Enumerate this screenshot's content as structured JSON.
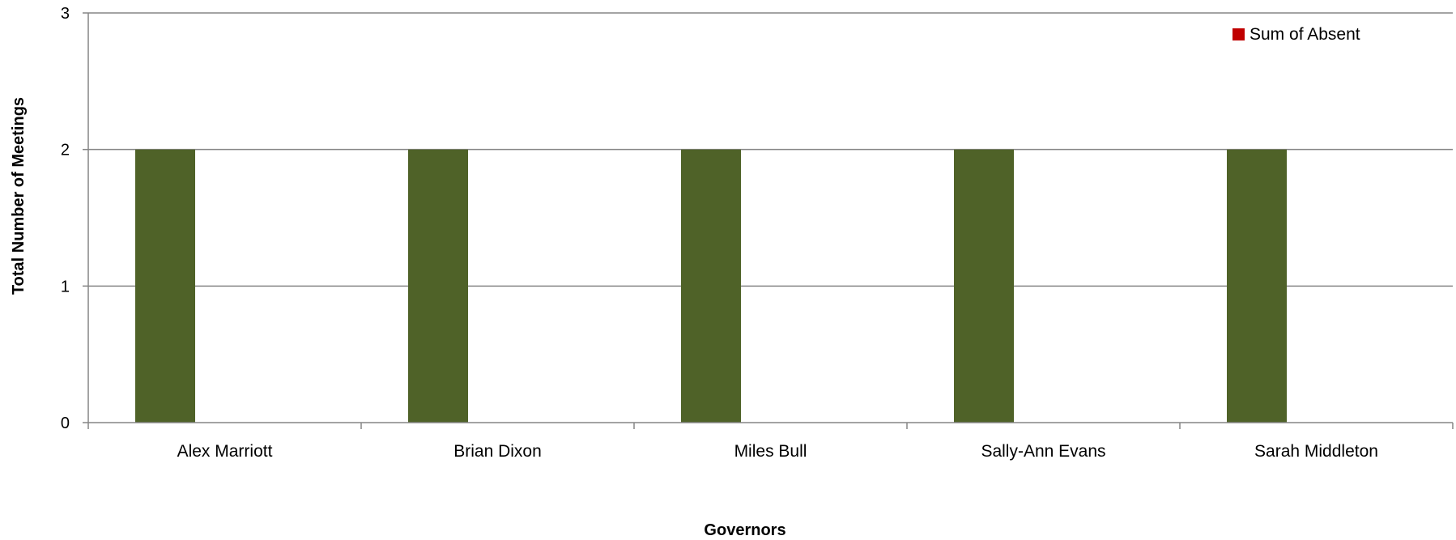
{
  "chart_data": {
    "type": "bar",
    "title": "",
    "xlabel": "Governors",
    "ylabel": "Total Number of Meetings",
    "categories": [
      "Alex Marriott",
      "Brian Dixon",
      "Miles Bull",
      "Sally-Ann Evans",
      "Sarah Middleton"
    ],
    "series": [
      {
        "values": [
          2,
          2,
          2,
          2,
          2
        ],
        "color": "#4F6228"
      },
      {
        "name": "Sum of Absent",
        "values": [
          0,
          0,
          0,
          0,
          0
        ],
        "color": "#C00000"
      }
    ],
    "ylim": [
      0,
      3
    ],
    "yticks": [
      "0",
      "1",
      "2",
      "3"
    ],
    "grid": true,
    "legend_position": "top-right"
  }
}
